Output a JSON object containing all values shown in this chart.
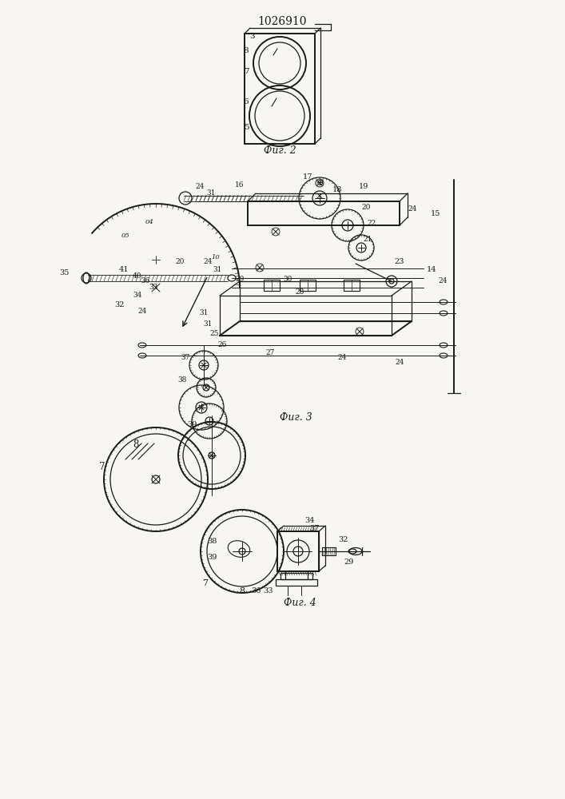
{
  "title": "1026910",
  "background_color": "#f8f6f2",
  "line_color": "#1a1a1a",
  "fig2_label": "Фиг. 2",
  "fig3_label": "Фиг. 3",
  "fig4_label": "Фиг. 4"
}
